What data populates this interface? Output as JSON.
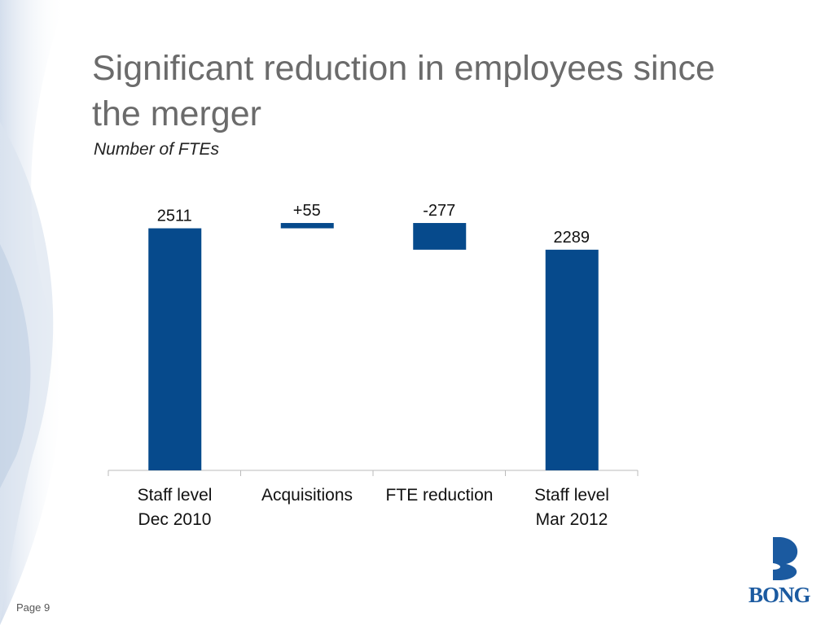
{
  "title": "Significant reduction in employees since the merger",
  "footer": {
    "page": "Page 9",
    "logo": "BONG"
  },
  "chart_data": {
    "type": "waterfall",
    "subtitle": "Number of FTEs",
    "categories": [
      "Staff level\nDec 2010",
      "Acquisitions",
      "FTE reduction",
      "Staff level\nMar 2012"
    ],
    "values": [
      2511,
      55,
      -277,
      2289
    ],
    "value_labels": [
      "2511",
      "+55",
      "-277",
      "2289"
    ],
    "color": "#064a8c",
    "ylim": [
      0,
      2600
    ]
  }
}
